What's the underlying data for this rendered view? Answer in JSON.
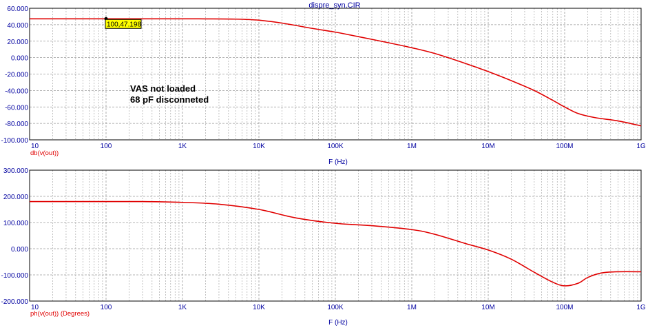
{
  "window_title": "dispre_syn.CIR",
  "annotation": {
    "line1": "VAS not loaded",
    "line2": "68 pF disconneted"
  },
  "cursor_readout": "100,47.198",
  "colors": {
    "trace": "#e00000",
    "axis_text": "#0000a0",
    "grid": "#9a9a9a",
    "frame": "#000000",
    "readout_bg": "#ffff00",
    "trace_label": "#e00000"
  },
  "chart_data": [
    {
      "type": "line",
      "title": "dispre_syn.CIR",
      "xlabel": "F (Hz)",
      "ylabel": "",
      "trace_label": "db(v(out))",
      "xscale": "log",
      "xlim": [
        10,
        1000000000
      ],
      "ylim": [
        -100,
        60
      ],
      "x_tick_labels": [
        "10",
        "100",
        "1K",
        "10K",
        "100K",
        "1M",
        "10M",
        "100M",
        "1G"
      ],
      "y_tick_labels": [
        "60.000",
        "40.000",
        "20.000",
        "0.000",
        "-20.000",
        "-40.000",
        "-60.000",
        "-80.000",
        "-100.000"
      ],
      "grid": true,
      "series": [
        {
          "x": [
            10,
            100,
            1000,
            2000,
            5000,
            10000,
            20000,
            50000,
            100000,
            200000,
            500000,
            1000000,
            2000000,
            5000000,
            10000000,
            20000000,
            40000000,
            70000000,
            100000000,
            150000000,
            250000000,
            500000000,
            1000000000
          ],
          "y": [
            47.2,
            47.2,
            47.2,
            47.1,
            46.8,
            45.5,
            42,
            35.5,
            31,
            25.5,
            18,
            12,
            5,
            -7,
            -17,
            -28,
            -40,
            -52,
            -60,
            -68,
            -73,
            -77,
            -83
          ]
        }
      ]
    },
    {
      "type": "line",
      "title": "",
      "xlabel": "F (Hz)",
      "ylabel": "",
      "trace_label": "ph(v(out)) (Degrees)",
      "xscale": "log",
      "xlim": [
        10,
        1000000000
      ],
      "ylim": [
        -200,
        300
      ],
      "x_tick_labels": [
        "10",
        "100",
        "1K",
        "10K",
        "100K",
        "1M",
        "10M",
        "100M",
        "1G"
      ],
      "y_tick_labels": [
        "300.000",
        "200.000",
        "100.000",
        "0.000",
        "-100.000",
        "-200.000"
      ],
      "grid": true,
      "series": [
        {
          "x": [
            10,
            100,
            300,
            1000,
            3000,
            10000,
            30000,
            100000,
            300000,
            1000000,
            2000000,
            5000000,
            10000000,
            20000000,
            40000000,
            70000000,
            100000000,
            150000000,
            200000000,
            300000000,
            500000000,
            1000000000
          ],
          "y": [
            180,
            180,
            180,
            177,
            170,
            150,
            118,
            97,
            88,
            73,
            55,
            20,
            -5,
            -40,
            -90,
            -128,
            -142,
            -132,
            -110,
            -93,
            -88,
            -88
          ]
        }
      ]
    }
  ]
}
